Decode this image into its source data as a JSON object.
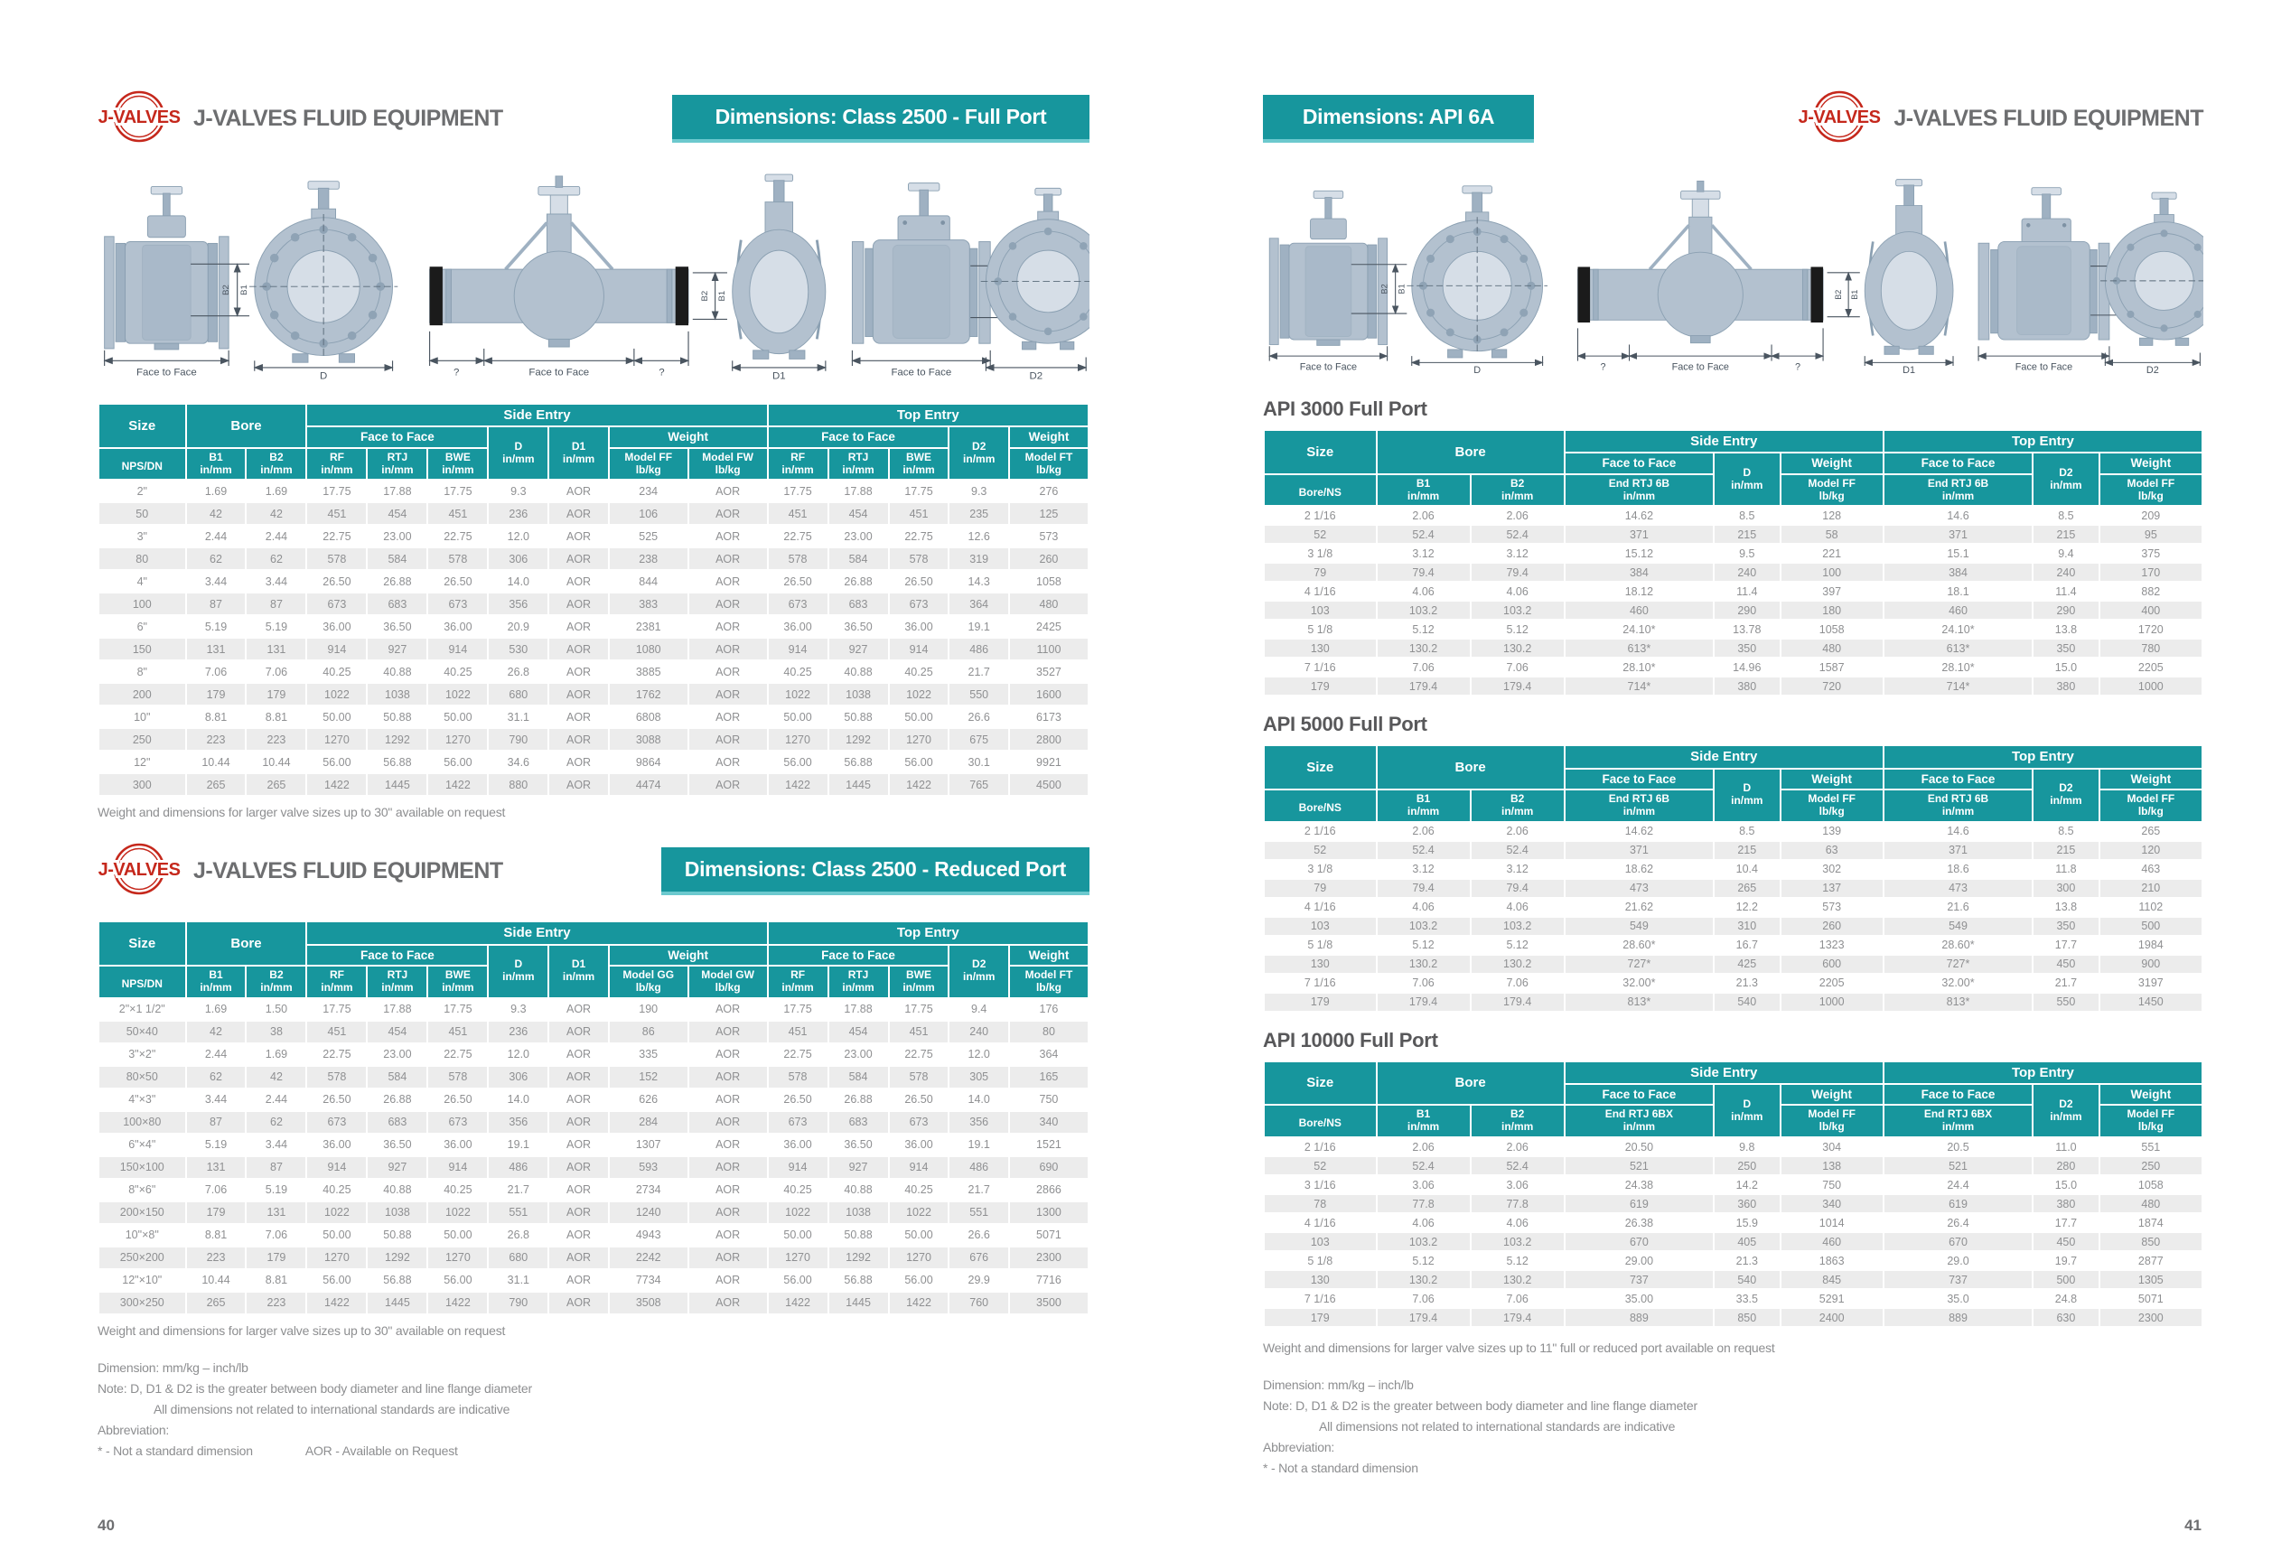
{
  "brand": {
    "logo_text": "J-VALVES",
    "company": "J-VALVES FLUID EQUIPMENT"
  },
  "diagram": {
    "face_to_face": "Face to Face",
    "d": "D",
    "d1": "D1",
    "d2": "D2",
    "b1": "B1",
    "b2": "B2",
    "unknown": "?"
  },
  "shared": {
    "size": "Size",
    "nps_dn": "NPS/DN",
    "bore_ns": "Bore/NS",
    "bore": "Bore",
    "b1": "B1",
    "b2": "B2",
    "in_mm": "in/mm",
    "lb_kg": "lb/kg",
    "side_entry": "Side Entry",
    "top_entry": "Top Entry",
    "face_to_face": "Face to Face",
    "weight": "Weight",
    "rf": "RF",
    "rtj": "RTJ",
    "bwe": "BWE",
    "d": "D",
    "d1": "D1",
    "d2": "D2"
  },
  "left_page": {
    "page_number": "40",
    "note": "Weight and dimensions for larger valve sizes up to 30\" available on request",
    "footnotes": {
      "dimension": "Dimension: mm/kg – inch/lb",
      "note": "Note: D, D1 & D2 is the greater between body diameter and line flange diameter",
      "note2": "All dimensions not related to international standards are indicative",
      "abbrev": "Abbreviation:",
      "star": "* - Not a standard dimension",
      "aor": "AOR - Available on Request"
    },
    "table_full": {
      "banner": "Dimensions: Class 2500 - Full Port",
      "model_side_a": "Model FF",
      "model_side_b": "Model FW",
      "model_top": "Model FT",
      "rows": [
        [
          "2\"",
          "1.69",
          "1.69",
          "17.75",
          "17.88",
          "17.75",
          "9.3",
          "AOR",
          "234",
          "AOR",
          "17.75",
          "17.88",
          "17.75",
          "9.3",
          "276"
        ],
        [
          "50",
          "42",
          "42",
          "451",
          "454",
          "451",
          "236",
          "AOR",
          "106",
          "AOR",
          "451",
          "454",
          "451",
          "235",
          "125"
        ],
        [
          "3\"",
          "2.44",
          "2.44",
          "22.75",
          "23.00",
          "22.75",
          "12.0",
          "AOR",
          "525",
          "AOR",
          "22.75",
          "23.00",
          "22.75",
          "12.6",
          "573"
        ],
        [
          "80",
          "62",
          "62",
          "578",
          "584",
          "578",
          "306",
          "AOR",
          "238",
          "AOR",
          "578",
          "584",
          "578",
          "319",
          "260"
        ],
        [
          "4\"",
          "3.44",
          "3.44",
          "26.50",
          "26.88",
          "26.50",
          "14.0",
          "AOR",
          "844",
          "AOR",
          "26.50",
          "26.88",
          "26.50",
          "14.3",
          "1058"
        ],
        [
          "100",
          "87",
          "87",
          "673",
          "683",
          "673",
          "356",
          "AOR",
          "383",
          "AOR",
          "673",
          "683",
          "673",
          "364",
          "480"
        ],
        [
          "6\"",
          "5.19",
          "5.19",
          "36.00",
          "36.50",
          "36.00",
          "20.9",
          "AOR",
          "2381",
          "AOR",
          "36.00",
          "36.50",
          "36.00",
          "19.1",
          "2425"
        ],
        [
          "150",
          "131",
          "131",
          "914",
          "927",
          "914",
          "530",
          "AOR",
          "1080",
          "AOR",
          "914",
          "927",
          "914",
          "486",
          "1100"
        ],
        [
          "8\"",
          "7.06",
          "7.06",
          "40.25",
          "40.88",
          "40.25",
          "26.8",
          "AOR",
          "3885",
          "AOR",
          "40.25",
          "40.88",
          "40.25",
          "21.7",
          "3527"
        ],
        [
          "200",
          "179",
          "179",
          "1022",
          "1038",
          "1022",
          "680",
          "AOR",
          "1762",
          "AOR",
          "1022",
          "1038",
          "1022",
          "550",
          "1600"
        ],
        [
          "10\"",
          "8.81",
          "8.81",
          "50.00",
          "50.88",
          "50.00",
          "31.1",
          "AOR",
          "6808",
          "AOR",
          "50.00",
          "50.88",
          "50.00",
          "26.6",
          "6173"
        ],
        [
          "250",
          "223",
          "223",
          "1270",
          "1292",
          "1270",
          "790",
          "AOR",
          "3088",
          "AOR",
          "1270",
          "1292",
          "1270",
          "675",
          "2800"
        ],
        [
          "12\"",
          "10.44",
          "10.44",
          "56.00",
          "56.88",
          "56.00",
          "34.6",
          "AOR",
          "9864",
          "AOR",
          "56.00",
          "56.88",
          "56.00",
          "30.1",
          "9921"
        ],
        [
          "300",
          "265",
          "265",
          "1422",
          "1445",
          "1422",
          "880",
          "AOR",
          "4474",
          "AOR",
          "1422",
          "1445",
          "1422",
          "765",
          "4500"
        ]
      ]
    },
    "table_reduced": {
      "banner": "Dimensions: Class 2500 - Reduced Port",
      "model_side_a": "Model GG",
      "model_side_b": "Model GW",
      "model_top": "Model FT",
      "rows": [
        [
          "2\"×1 1/2\"",
          "1.69",
          "1.50",
          "17.75",
          "17.88",
          "17.75",
          "9.3",
          "AOR",
          "190",
          "AOR",
          "17.75",
          "17.88",
          "17.75",
          "9.4",
          "176"
        ],
        [
          "50×40",
          "42",
          "38",
          "451",
          "454",
          "451",
          "236",
          "AOR",
          "86",
          "AOR",
          "451",
          "454",
          "451",
          "240",
          "80"
        ],
        [
          "3\"×2\"",
          "2.44",
          "1.69",
          "22.75",
          "23.00",
          "22.75",
          "12.0",
          "AOR",
          "335",
          "AOR",
          "22.75",
          "23.00",
          "22.75",
          "12.0",
          "364"
        ],
        [
          "80×50",
          "62",
          "42",
          "578",
          "584",
          "578",
          "306",
          "AOR",
          "152",
          "AOR",
          "578",
          "584",
          "578",
          "305",
          "165"
        ],
        [
          "4\"×3\"",
          "3.44",
          "2.44",
          "26.50",
          "26.88",
          "26.50",
          "14.0",
          "AOR",
          "626",
          "AOR",
          "26.50",
          "26.88",
          "26.50",
          "14.0",
          "750"
        ],
        [
          "100×80",
          "87",
          "62",
          "673",
          "683",
          "673",
          "356",
          "AOR",
          "284",
          "AOR",
          "673",
          "683",
          "673",
          "356",
          "340"
        ],
        [
          "6\"×4\"",
          "5.19",
          "3.44",
          "36.00",
          "36.50",
          "36.00",
          "19.1",
          "AOR",
          "1307",
          "AOR",
          "36.00",
          "36.50",
          "36.00",
          "19.1",
          "1521"
        ],
        [
          "150×100",
          "131",
          "87",
          "914",
          "927",
          "914",
          "486",
          "AOR",
          "593",
          "AOR",
          "914",
          "927",
          "914",
          "486",
          "690"
        ],
        [
          "8\"×6\"",
          "7.06",
          "5.19",
          "40.25",
          "40.88",
          "40.25",
          "21.7",
          "AOR",
          "2734",
          "AOR",
          "40.25",
          "40.88",
          "40.25",
          "21.7",
          "2866"
        ],
        [
          "200×150",
          "179",
          "131",
          "1022",
          "1038",
          "1022",
          "551",
          "AOR",
          "1240",
          "AOR",
          "1022",
          "1038",
          "1022",
          "551",
          "1300"
        ],
        [
          "10\"×8\"",
          "8.81",
          "7.06",
          "50.00",
          "50.88",
          "50.00",
          "26.8",
          "AOR",
          "4943",
          "AOR",
          "50.00",
          "50.88",
          "50.00",
          "26.6",
          "5071"
        ],
        [
          "250×200",
          "223",
          "179",
          "1270",
          "1292",
          "1270",
          "680",
          "AOR",
          "2242",
          "AOR",
          "1270",
          "1292",
          "1270",
          "676",
          "2300"
        ],
        [
          "12\"×10\"",
          "10.44",
          "8.81",
          "56.00",
          "56.88",
          "56.00",
          "31.1",
          "AOR",
          "7734",
          "AOR",
          "56.00",
          "56.88",
          "56.00",
          "29.9",
          "7716"
        ],
        [
          "300×250",
          "265",
          "223",
          "1422",
          "1445",
          "1422",
          "790",
          "AOR",
          "3508",
          "AOR",
          "1422",
          "1445",
          "1422",
          "760",
          "3500"
        ]
      ]
    }
  },
  "right_page": {
    "page_number": "41",
    "banner": "Dimensions: API 6A",
    "note": "Weight and dimensions for larger valve sizes up to 11\" full or reduced port available on request",
    "footnotes": {
      "dimension": "Dimension: mm/kg – inch/lb",
      "note": "Note: D, D1 & D2 is the greater between body diameter and line flange diameter",
      "note2": "All dimensions not related to international standards are indicative",
      "abbrev": "Abbreviation:",
      "star": "* - Not a standard dimension"
    },
    "sections": [
      {
        "title": "API 3000 Full Port",
        "ftf_label": "End RTJ 6B",
        "model": "Model FF",
        "rows": [
          [
            "2 1/16",
            "2.06",
            "2.06",
            "14.62",
            "8.5",
            "128",
            "14.6",
            "8.5",
            "209"
          ],
          [
            "52",
            "52.4",
            "52.4",
            "371",
            "215",
            "58",
            "371",
            "215",
            "95"
          ],
          [
            "3 1/8",
            "3.12",
            "3.12",
            "15.12",
            "9.5",
            "221",
            "15.1",
            "9.4",
            "375"
          ],
          [
            "79",
            "79.4",
            "79.4",
            "384",
            "240",
            "100",
            "384",
            "240",
            "170"
          ],
          [
            "4 1/16",
            "4.06",
            "4.06",
            "18.12",
            "11.4",
            "397",
            "18.1",
            "11.4",
            "882"
          ],
          [
            "103",
            "103.2",
            "103.2",
            "460",
            "290",
            "180",
            "460",
            "290",
            "400"
          ],
          [
            "5 1/8",
            "5.12",
            "5.12",
            "24.10*",
            "13.78",
            "1058",
            "24.10*",
            "13.8",
            "1720"
          ],
          [
            "130",
            "130.2",
            "130.2",
            "613*",
            "350",
            "480",
            "613*",
            "350",
            "780"
          ],
          [
            "7 1/16",
            "7.06",
            "7.06",
            "28.10*",
            "14.96",
            "1587",
            "28.10*",
            "15.0",
            "2205"
          ],
          [
            "179",
            "179.4",
            "179.4",
            "714*",
            "380",
            "720",
            "714*",
            "380",
            "1000"
          ]
        ]
      },
      {
        "title": "API 5000 Full Port",
        "ftf_label": "End RTJ 6B",
        "model": "Model FF",
        "rows": [
          [
            "2 1/16",
            "2.06",
            "2.06",
            "14.62",
            "8.5",
            "139",
            "14.6",
            "8.5",
            "265"
          ],
          [
            "52",
            "52.4",
            "52.4",
            "371",
            "215",
            "63",
            "371",
            "215",
            "120"
          ],
          [
            "3 1/8",
            "3.12",
            "3.12",
            "18.62",
            "10.4",
            "302",
            "18.6",
            "11.8",
            "463"
          ],
          [
            "79",
            "79.4",
            "79.4",
            "473",
            "265",
            "137",
            "473",
            "300",
            "210"
          ],
          [
            "4 1/16",
            "4.06",
            "4.06",
            "21.62",
            "12.2",
            "573",
            "21.6",
            "13.8",
            "1102"
          ],
          [
            "103",
            "103.2",
            "103.2",
            "549",
            "310",
            "260",
            "549",
            "350",
            "500"
          ],
          [
            "5 1/8",
            "5.12",
            "5.12",
            "28.60*",
            "16.7",
            "1323",
            "28.60*",
            "17.7",
            "1984"
          ],
          [
            "130",
            "130.2",
            "130.2",
            "727*",
            "425",
            "600",
            "727*",
            "450",
            "900"
          ],
          [
            "7 1/16",
            "7.06",
            "7.06",
            "32.00*",
            "21.3",
            "2205",
            "32.00*",
            "21.7",
            "3197"
          ],
          [
            "179",
            "179.4",
            "179.4",
            "813*",
            "540",
            "1000",
            "813*",
            "550",
            "1450"
          ]
        ]
      },
      {
        "title": "API 10000 Full Port",
        "ftf_label": "End RTJ 6BX",
        "model": "Model FF",
        "rows": [
          [
            "2 1/16",
            "2.06",
            "2.06",
            "20.50",
            "9.8",
            "304",
            "20.5",
            "11.0",
            "551"
          ],
          [
            "52",
            "52.4",
            "52.4",
            "521",
            "250",
            "138",
            "521",
            "280",
            "250"
          ],
          [
            "3 1/16",
            "3.06",
            "3.06",
            "24.38",
            "14.2",
            "750",
            "24.4",
            "15.0",
            "1058"
          ],
          [
            "78",
            "77.8",
            "77.8",
            "619",
            "360",
            "340",
            "619",
            "380",
            "480"
          ],
          [
            "4 1/16",
            "4.06",
            "4.06",
            "26.38",
            "15.9",
            "1014",
            "26.4",
            "17.7",
            "1874"
          ],
          [
            "103",
            "103.2",
            "103.2",
            "670",
            "405",
            "460",
            "670",
            "450",
            "850"
          ],
          [
            "5 1/8",
            "5.12",
            "5.12",
            "29.00",
            "21.3",
            "1863",
            "29.0",
            "19.7",
            "2877"
          ],
          [
            "130",
            "130.2",
            "130.2",
            "737",
            "540",
            "845",
            "737",
            "500",
            "1305"
          ],
          [
            "7 1/16",
            "7.06",
            "7.06",
            "35.00",
            "33.5",
            "5291",
            "35.0",
            "24.8",
            "5071"
          ],
          [
            "179",
            "179.4",
            "179.4",
            "889",
            "850",
            "2400",
            "889",
            "630",
            "2300"
          ]
        ]
      }
    ]
  }
}
